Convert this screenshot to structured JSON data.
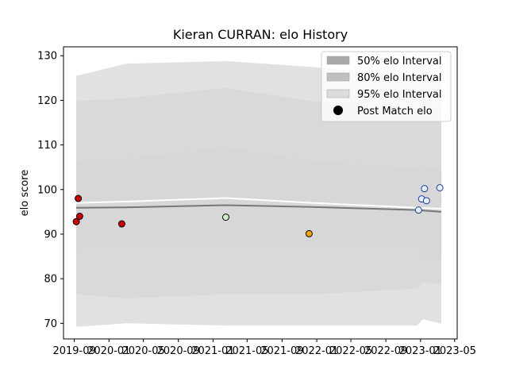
{
  "chart_data": {
    "type": "scatter",
    "title": "Kieran CURRAN: elo History",
    "xlabel": "",
    "ylabel": "elo score",
    "xlim": [
      "2019-07-25",
      "2023-05-10"
    ],
    "ylim": [
      66.5,
      132
    ],
    "x_ticks": [
      "2019-09",
      "2020-01",
      "2020-05",
      "2020-09",
      "2021-01",
      "2021-05",
      "2021-09",
      "2022-01",
      "2022-05",
      "2022-09",
      "2023-01",
      "2023-05"
    ],
    "y_ticks": [
      70,
      80,
      90,
      100,
      110,
      120,
      130
    ],
    "grid": false,
    "legend": {
      "placement": "top-right",
      "entries": [
        "50% elo Interval",
        "80% elo Interval",
        "95% elo Interval",
        "Post Match elo"
      ]
    },
    "bands": [
      {
        "name": "50% elo Interval",
        "color": "#a9a9a9",
        "x": [
          "2019-09-08",
          "2020-03-01",
          "2021-02-15",
          "2021-12-15",
          "2022-12-20",
          "2023-01-10",
          "2023-03-15"
        ],
        "lower": [
          86.6,
          86.6,
          86.6,
          87.2,
          87.2,
          84.6,
          84.6
        ],
        "upper": [
          106.4,
          107.0,
          109.5,
          106.5,
          104.6,
          105.2,
          104.6
        ]
      },
      {
        "name": "80% elo Interval",
        "color": "#c0c0c0",
        "x": [
          "2019-09-08",
          "2020-03-01",
          "2021-02-15",
          "2021-12-15",
          "2022-12-20",
          "2023-01-10",
          "2023-03-15"
        ],
        "lower": [
          76.5,
          75.6,
          76.5,
          76.5,
          77.8,
          79.2,
          78.6
        ],
        "upper": [
          119.8,
          120.5,
          122.8,
          119.8,
          118.7,
          119.5,
          118.7
        ]
      },
      {
        "name": "95% elo Interval",
        "color": "#dcdcdc",
        "x": [
          "2019-09-08",
          "2020-03-01",
          "2021-02-15",
          "2021-12-15",
          "2022-12-20",
          "2023-01-10",
          "2023-03-15"
        ],
        "lower": [
          69.2,
          70.0,
          69.5,
          69.5,
          69.5,
          70.9,
          69.9
        ],
        "upper": [
          125.5,
          128.2,
          128.8,
          127.5,
          125.3,
          126.6,
          125.3
        ]
      }
    ],
    "series": [
      {
        "marker": "line",
        "color": "#ffffff",
        "x": [
          "2019-09-08",
          "2020-03-01",
          "2021-02-15",
          "2021-12-15",
          "2022-12-20",
          "2023-03-15"
        ],
        "y": [
          97.0,
          97.3,
          98.1,
          97.0,
          95.9,
          95.7
        ]
      },
      {
        "marker": "line",
        "color": "#777777",
        "x": [
          "2019-09-08",
          "2020-03-01",
          "2021-02-15",
          "2021-12-15",
          "2022-12-20",
          "2023-03-15"
        ],
        "y": [
          95.9,
          96.0,
          96.5,
          96.1,
          95.4,
          95.0
        ]
      },
      {
        "name": "Post Match elo",
        "marker": "point",
        "x": [
          "2019-09-08",
          "2019-09-15",
          "2019-09-20",
          "2020-02-15",
          "2021-02-15",
          "2021-12-05",
          "2022-12-25",
          "2023-01-05",
          "2023-01-15",
          "2023-01-22",
          "2023-03-10"
        ],
        "y": [
          92.8,
          98.0,
          94.0,
          92.3,
          93.8,
          90.1,
          95.4,
          97.9,
          100.2,
          97.5,
          100.4
        ],
        "colors": [
          "#cc0000",
          "#cc0000",
          "#cc0000",
          "#cc0000",
          "#ccf2c4",
          "#f2a900",
          "#e8f0ff",
          "#e8f0ff",
          "#e8f0ff",
          "#e8f0ff",
          "#e8f0ff"
        ],
        "edge_colors": [
          "#000000",
          "#000000",
          "#000000",
          "#000000",
          "#000000",
          "#000000",
          "#1f3fa0",
          "#1f3fa0",
          "#1f3fa0",
          "#1f3fa0",
          "#1f3fa0"
        ]
      }
    ]
  }
}
